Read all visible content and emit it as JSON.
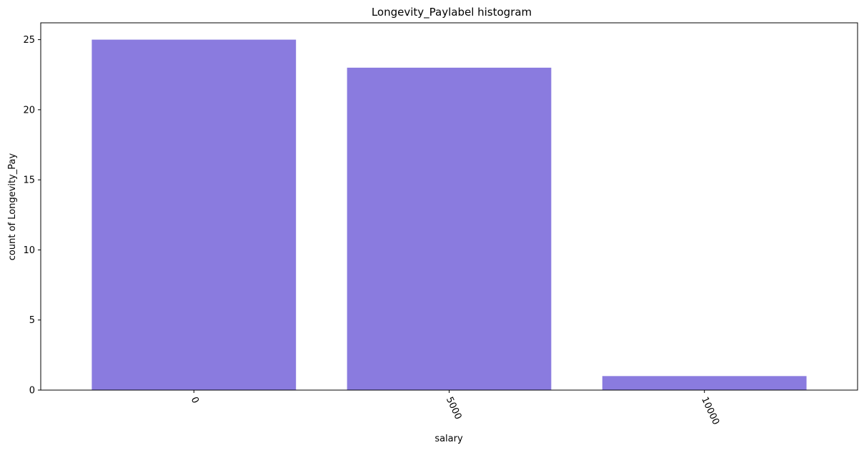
{
  "chart_data": {
    "type": "bar",
    "title": "Longevity_Paylabel histogram",
    "xlabel": "salary",
    "ylabel": "count of Longevity_Pay",
    "categories": [
      "0",
      "5000",
      "10000"
    ],
    "values": [
      25,
      23,
      1
    ],
    "ylim": [
      0,
      26.2
    ],
    "yticks": [
      0,
      5,
      10,
      15,
      20,
      25
    ],
    "xtick_rotation": 65,
    "bar_color": "#8a7bdf",
    "grid": false,
    "legend": "none"
  }
}
